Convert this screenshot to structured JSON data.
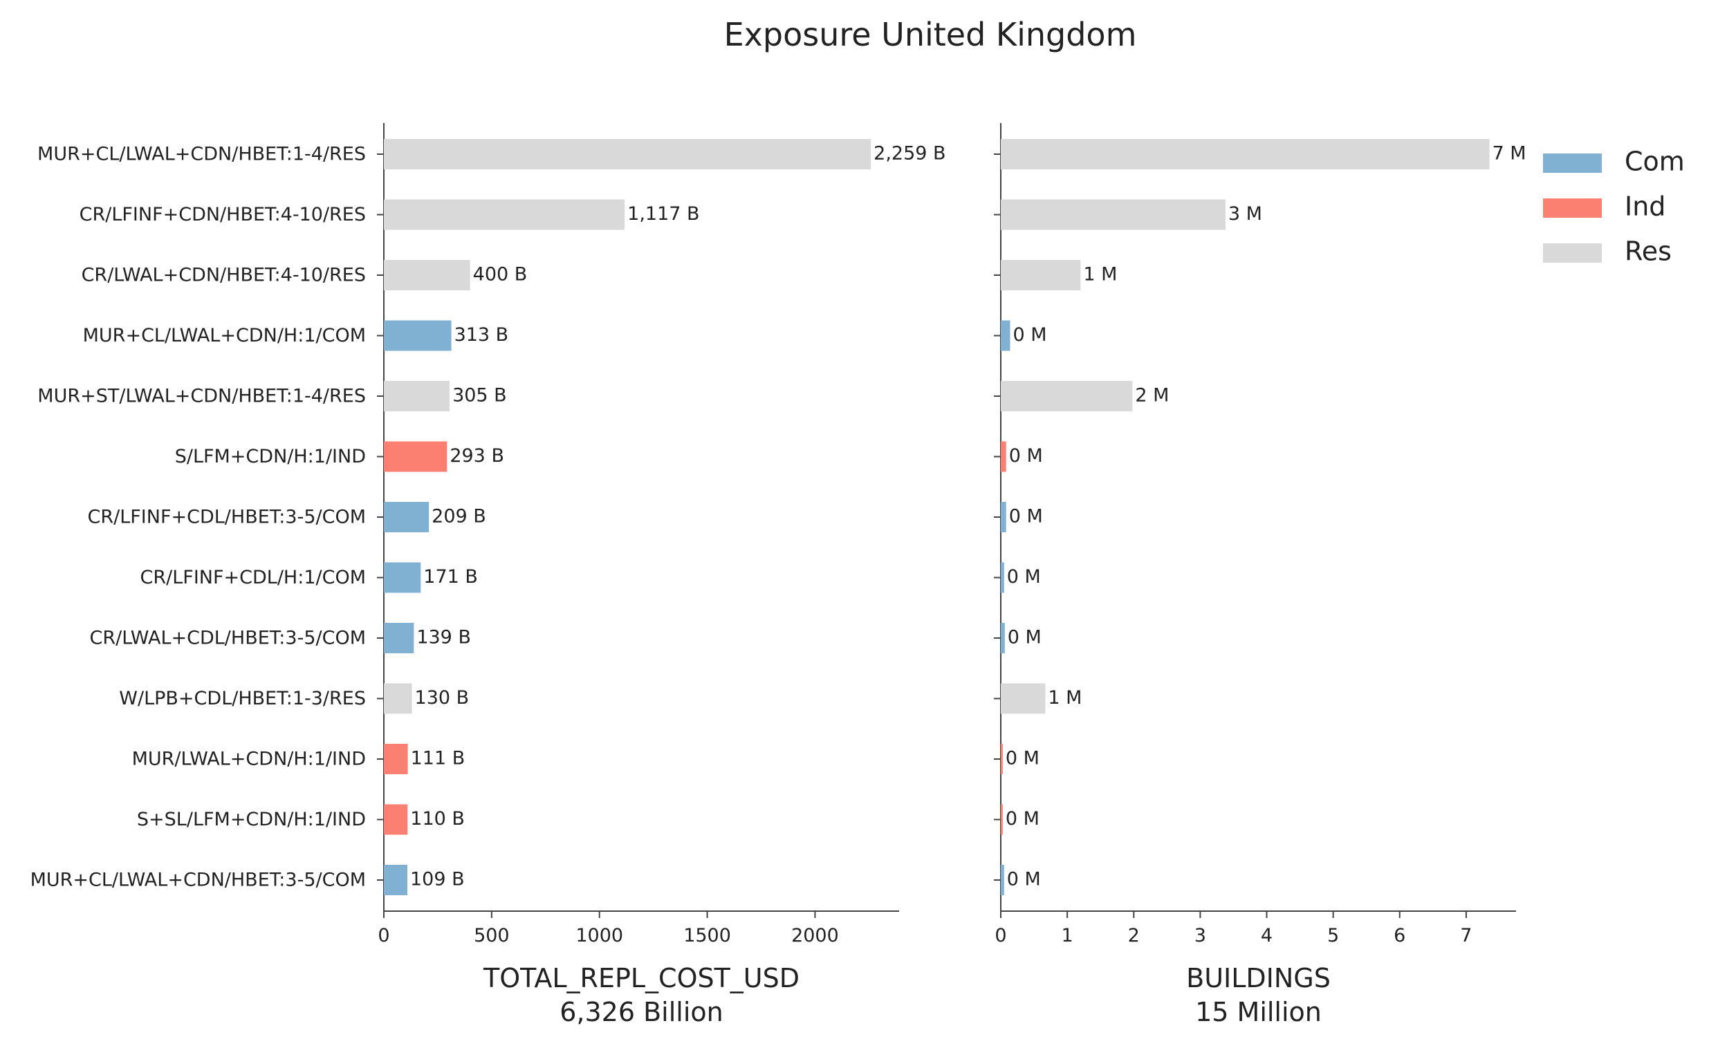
{
  "title": "Exposure United Kingdom",
  "legend": {
    "position": "top-right",
    "entries": [
      {
        "key": "Com",
        "label": "Com",
        "color": "#80b1d3"
      },
      {
        "key": "Ind",
        "label": "Ind",
        "color": "#fb8072"
      },
      {
        "key": "Res",
        "label": "Res",
        "color": "#d9d9d9"
      }
    ]
  },
  "chart_data": [
    {
      "type": "bar",
      "orientation": "horizontal",
      "xlabel": "TOTAL_REPL_COST_USD",
      "xlabel_sub": "6,326 Billion",
      "xlim": [
        0,
        2390
      ],
      "xticks": [
        0,
        500,
        1000,
        1500,
        2000
      ],
      "value_unit": "B",
      "grid": false,
      "categories": [
        "MUR+CL/LWAL+CDN/HBET:1-4/RES",
        "CR/LFINF+CDN/HBET:4-10/RES",
        "CR/LWAL+CDN/HBET:4-10/RES",
        "MUR+CL/LWAL+CDN/H:1/COM",
        "MUR+ST/LWAL+CDN/HBET:1-4/RES",
        "S/LFM+CDN/H:1/IND",
        "CR/LFINF+CDL/HBET:3-5/COM",
        "CR/LFINF+CDL/H:1/COM",
        "CR/LWAL+CDL/HBET:3-5/COM",
        "W/LPB+CDL/HBET:1-3/RES",
        "MUR/LWAL+CDN/H:1/IND",
        "S+SL/LFM+CDN/H:1/IND",
        "MUR+CL/LWAL+CDN/HBET:3-5/COM"
      ],
      "groups": [
        "Res",
        "Res",
        "Res",
        "Com",
        "Res",
        "Ind",
        "Com",
        "Com",
        "Com",
        "Res",
        "Ind",
        "Ind",
        "Com"
      ],
      "values": [
        2259,
        1117,
        400,
        313,
        305,
        293,
        209,
        171,
        139,
        130,
        111,
        110,
        109
      ],
      "labels": [
        "2,259 B",
        "1,117 B",
        "400 B",
        "313 B",
        "305 B",
        "293 B",
        "209 B",
        "171 B",
        "139 B",
        "130 B",
        "111 B",
        "110 B",
        "109 B"
      ]
    },
    {
      "type": "bar",
      "orientation": "horizontal",
      "xlabel": "BUILDINGS",
      "xlabel_sub": "15 Million",
      "xlim": [
        0,
        7.75
      ],
      "xticks": [
        0,
        1,
        2,
        3,
        4,
        5,
        6,
        7
      ],
      "value_unit": "M",
      "grid": false,
      "groups": [
        "Res",
        "Res",
        "Res",
        "Com",
        "Res",
        "Ind",
        "Com",
        "Com",
        "Com",
        "Res",
        "Ind",
        "Ind",
        "Com"
      ],
      "values": [
        7.35,
        3.38,
        1.2,
        0.14,
        1.98,
        0.08,
        0.08,
        0.05,
        0.06,
        0.67,
        0.03,
        0.03,
        0.05
      ],
      "labels": [
        "7 M",
        "3 M",
        "1 M",
        "0 M",
        "2 M",
        "0 M",
        "0 M",
        "0 M",
        "0 M",
        "1 M",
        "0 M",
        "0 M",
        "0 M"
      ]
    }
  ]
}
